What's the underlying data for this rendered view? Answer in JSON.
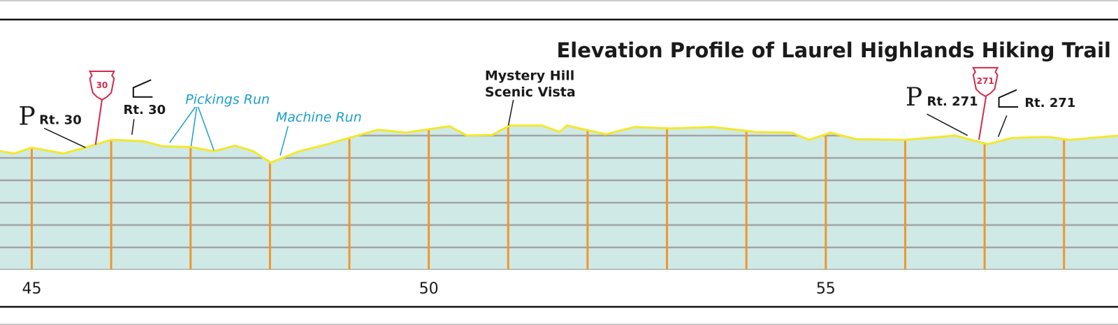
{
  "chart_data": {
    "type": "area",
    "title": "Elevation Profile of Laurel Highlands Hiking Trail",
    "x": [
      44.6,
      44.78,
      45,
      45.4,
      45.67,
      46,
      46.4,
      46.66,
      47,
      47.29,
      47.56,
      47.79,
      48.01,
      48.37,
      48.73,
      49,
      49.36,
      49.71,
      50.26,
      50.48,
      50.8,
      51.02,
      51.43,
      51.65,
      51.74,
      52.23,
      52.59,
      53.04,
      53.58,
      54.12,
      54.57,
      54.79,
      55.06,
      55.38,
      56,
      56.63,
      57.04,
      57.35,
      57.8,
      58.07,
      58.68
    ],
    "values": [
      5.3,
      5.2,
      5.46,
      5.2,
      5.46,
      5.81,
      5.75,
      5.52,
      5.49,
      5.3,
      5.55,
      5.3,
      4.79,
      5.3,
      5.62,
      5.9,
      6.26,
      6.13,
      6.42,
      6.0,
      6.03,
      6.45,
      6.45,
      6.16,
      6.45,
      6.06,
      6.38,
      6.32,
      6.38,
      6.16,
      6.13,
      5.81,
      6.13,
      5.84,
      5.81,
      6.0,
      5.62,
      5.9,
      5.94,
      5.81,
      6.0
    ],
    "color": "#f3e82b",
    "fill_color": "#cfe9e6",
    "marker_color": "#f0962a",
    "grid_color": "#a3a3a3",
    "xlim": [
      44.6,
      58.68
    ],
    "xticks": [
      45,
      50,
      55
    ],
    "mile_markers": [
      45,
      46,
      47,
      48,
      49,
      50,
      51,
      52,
      53,
      54,
      55,
      56,
      57,
      58
    ],
    "ylim": [
      0,
      6
    ],
    "yticks": [
      0,
      1,
      2,
      3,
      4,
      5,
      6
    ],
    "grid": true,
    "annotations": [
      "P",
      "Rt. 30",
      "30",
      "Rt. 30",
      "Pickings Run",
      "Machine Run",
      "Mystery Hill",
      "Scenic Vista",
      "P",
      "Rt. 271",
      "271",
      "Rt. 271"
    ]
  }
}
